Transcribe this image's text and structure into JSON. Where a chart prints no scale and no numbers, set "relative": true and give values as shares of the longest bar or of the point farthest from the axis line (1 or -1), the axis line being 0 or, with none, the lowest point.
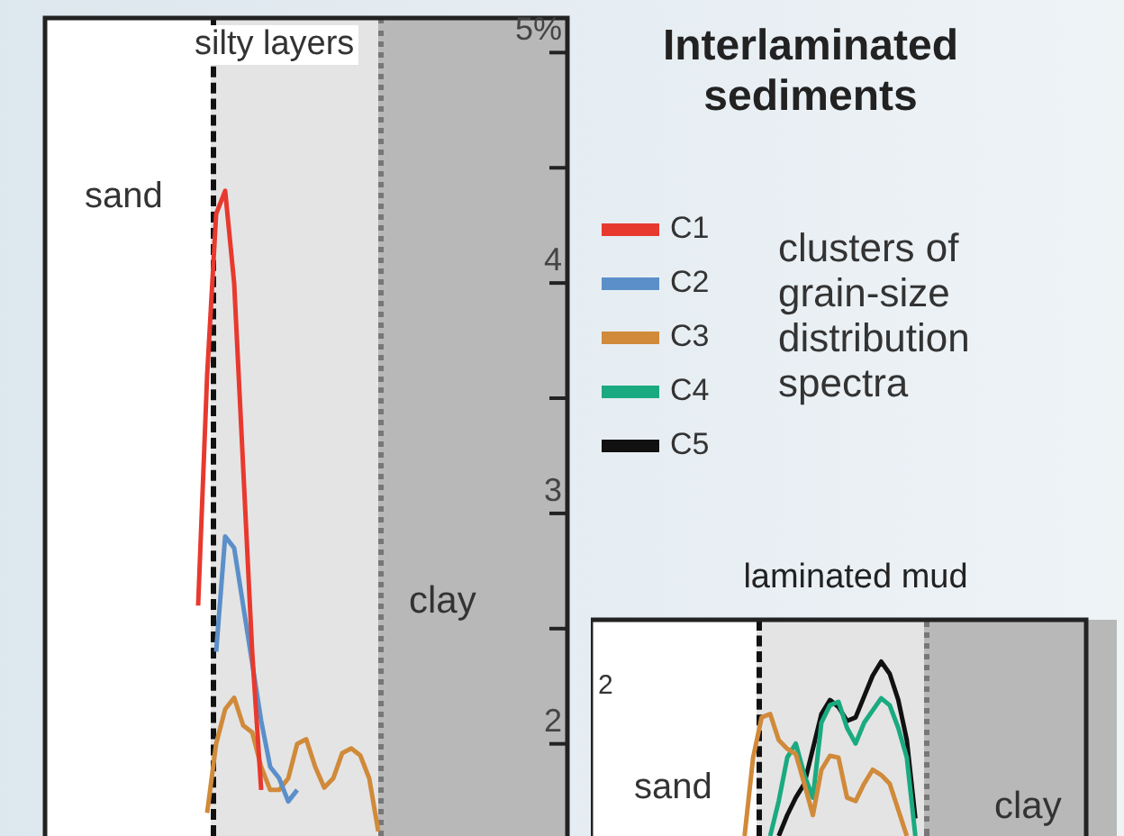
{
  "chart_data": [
    {
      "type": "line",
      "legend_title": "Interlaminated sediments",
      "legend": "right",
      "marker": "none",
      "tick_labels": "y",
      "categories": [
        null,
        null,
        null,
        null,
        null,
        null,
        null,
        null,
        null,
        null,
        null,
        null,
        null,
        null,
        null,
        null,
        null,
        null,
        null,
        null,
        null,
        null,
        null,
        null,
        null,
        null,
        null,
        null,
        null,
        null,
        null,
        null,
        null,
        null,
        null,
        null,
        null,
        null,
        null,
        null,
        null,
        null,
        null,
        null,
        null,
        null,
        null,
        null,
        null,
        null,
        null,
        null,
        null,
        null,
        null,
        null,
        null,
        null,
        null
      ],
      "series": [
        {
          "name": "C1",
          "color": "#e8392f",
          "values": [
            null,
            null,
            null,
            null,
            null,
            null,
            null,
            null,
            null,
            null,
            null,
            null,
            null,
            null,
            null,
            null,
            null,
            2.6,
            3.6,
            4.3,
            4.4,
            4.0,
            3.2,
            2.4,
            1.8,
            null,
            null,
            null,
            null,
            null,
            null,
            null,
            null,
            null,
            null,
            null,
            null,
            null,
            null,
            null,
            null,
            null,
            null,
            null,
            null,
            null,
            null,
            null,
            null,
            null,
            null,
            null,
            null,
            null,
            null,
            null,
            null,
            null,
            null
          ]
        },
        {
          "name": "C2",
          "color": "#5b8fc9",
          "values": [
            null,
            null,
            null,
            null,
            null,
            null,
            null,
            null,
            null,
            null,
            null,
            null,
            null,
            null,
            null,
            null,
            null,
            null,
            null,
            2.4,
            2.9,
            2.85,
            2.6,
            2.35,
            2.1,
            1.9,
            1.85,
            1.75,
            1.8,
            null,
            null,
            null,
            null,
            null,
            null,
            null,
            null,
            null,
            null,
            null,
            null,
            null,
            null,
            null,
            null,
            null,
            null,
            null,
            null,
            null,
            null,
            null,
            null,
            null,
            null,
            null,
            null,
            null,
            null
          ]
        },
        {
          "name": "C3",
          "color": "#d08a3a",
          "values": [
            null,
            null,
            null,
            null,
            null,
            null,
            null,
            null,
            null,
            null,
            null,
            null,
            null,
            null,
            null,
            null,
            null,
            null,
            1.7,
            2.0,
            2.15,
            2.2,
            2.08,
            2.05,
            1.9,
            1.8,
            1.8,
            1.85,
            2.0,
            2.02,
            1.9,
            1.81,
            1.85,
            1.96,
            1.98,
            1.95,
            1.85,
            1.62,
            null,
            null,
            null,
            null,
            null,
            null,
            null,
            null,
            null,
            null,
            null,
            null,
            null,
            null,
            null,
            null,
            null,
            null,
            null,
            null,
            null
          ]
        }
      ],
      "ylim": [
        1.6,
        5.15
      ],
      "yticks": [
        2,
        {
          "value": 2.5,
          "label": null
        },
        3,
        {
          "value": 3.5,
          "label": null
        },
        4,
        {
          "value": 4.5,
          "label": null
        },
        {
          "value": 5,
          "label": "5%"
        }
      ],
      "annotations": [
        "sand",
        "silty layers",
        "clay",
        "clusters of grain-size distribution spectra"
      ]
    },
    {
      "type": "line",
      "title": "laminated mud",
      "relative": true,
      "marker": "none",
      "tick_labels": false,
      "legend": "top left",
      "categories": [
        null,
        null,
        null,
        null,
        null,
        null,
        null,
        null,
        null,
        null,
        null,
        null,
        null,
        null,
        null,
        null,
        null,
        null,
        null,
        null,
        null,
        null,
        null,
        null,
        null,
        null,
        null,
        null,
        null,
        null,
        null,
        null,
        null,
        null,
        null,
        null,
        null,
        null,
        null,
        null,
        null,
        null,
        null,
        null,
        null,
        null,
        null,
        null,
        null,
        null,
        null,
        null,
        null,
        null,
        null,
        null,
        null,
        null,
        null
      ],
      "series": [
        {
          "name": "C3",
          "color": "#d08a3a",
          "values": [
            null,
            null,
            null,
            null,
            null,
            null,
            null,
            null,
            null,
            null,
            null,
            null,
            null,
            null,
            null,
            null,
            null,
            null,
            0,
            0.45,
            0.68,
            0.7,
            0.55,
            0.5,
            0.47,
            0.3,
            0.12,
            0.38,
            0.46,
            0.45,
            0.22,
            0.2,
            0.3,
            0.38,
            0.35,
            0.3,
            0.15,
            0,
            null,
            null,
            null,
            null,
            null,
            null,
            null,
            null,
            null,
            null,
            null,
            null,
            null,
            null,
            null,
            null,
            null,
            null,
            null,
            null,
            null
          ]
        },
        {
          "name": "C4",
          "color": "#1aaa80",
          "values": [
            null,
            null,
            null,
            null,
            null,
            null,
            null,
            null,
            null,
            null,
            null,
            null,
            null,
            null,
            null,
            null,
            null,
            null,
            null,
            null,
            null,
            0,
            0.2,
            0.45,
            0.53,
            0.35,
            0.22,
            0.65,
            0.75,
            0.77,
            0.62,
            0.53,
            0.65,
            0.72,
            0.79,
            0.75,
            0.62,
            0.45,
            0,
            null,
            null,
            null,
            null,
            null,
            null,
            null,
            null,
            null,
            null,
            null,
            null,
            null,
            null,
            null,
            null,
            null,
            null,
            null,
            null
          ]
        },
        {
          "name": "C5",
          "color": "#111111",
          "values": [
            null,
            null,
            null,
            null,
            null,
            null,
            null,
            null,
            null,
            null,
            null,
            null,
            null,
            null,
            null,
            null,
            null,
            null,
            null,
            null,
            null,
            null,
            0,
            0.12,
            0.22,
            0.3,
            0.5,
            0.7,
            0.78,
            0.74,
            0.66,
            0.68,
            0.8,
            0.92,
            1.0,
            0.93,
            0.78,
            0.55,
            0.1,
            null,
            null,
            null,
            null,
            null,
            null,
            null,
            null,
            null,
            null,
            null,
            null,
            null,
            null,
            null,
            null,
            null,
            null,
            null,
            null
          ]
        }
      ],
      "annotations": [
        "2",
        "sand",
        "clay"
      ]
    }
  ]
}
